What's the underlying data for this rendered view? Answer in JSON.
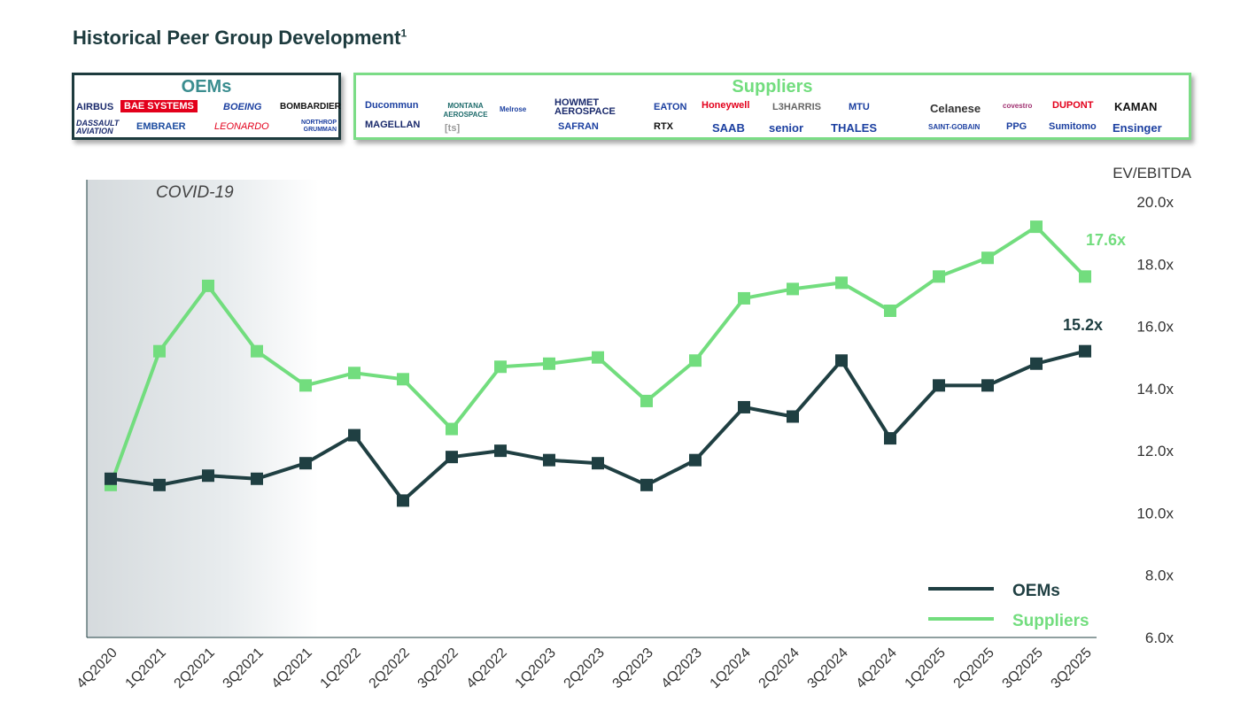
{
  "title": "Historical Peer Group Development",
  "title_footnote": "1",
  "oems_box": {
    "title": "OEMs",
    "logos": [
      "AIRBUS",
      "BAE SYSTEMS",
      "BOEING",
      "BOMBARDIER",
      "DASSAULT AVIATION",
      "EMBRAER",
      "LEONARDO",
      "NORTHROP GRUMMAN"
    ]
  },
  "suppliers_box": {
    "title": "Suppliers",
    "logos": [
      "Ducommun",
      "MAGELLAN",
      "MONTANA AEROSPACE",
      "[ts]",
      "Melrose",
      "HOWMET AEROSPACE",
      "SAFRAN",
      "EATON",
      "RTX",
      "Honeywell",
      "SAAB",
      "L3HARRIS",
      "senior",
      "MTU",
      "THALES",
      "Celanese",
      "SAINT-GOBAIN",
      "covestro",
      "PPG",
      "DUPONT",
      "Sumitomo",
      "KAMAN",
      "Ensinger"
    ]
  },
  "colors": {
    "oems": "#1f3f42",
    "suppliers": "#72dd7e",
    "covid": "#d5dadd"
  },
  "chart_data": {
    "type": "line",
    "ylabel": "EV/EBITDA",
    "ylim": [
      6,
      20
    ],
    "yticks": [
      "6.0x",
      "8.0x",
      "10.0x",
      "12.0x",
      "14.0x",
      "16.0x",
      "18.0x",
      "20.0x"
    ],
    "categories": [
      "4Q2020",
      "1Q2021",
      "2Q2021",
      "3Q2021",
      "4Q2021",
      "1Q2022",
      "2Q2022",
      "3Q2022",
      "4Q2022",
      "1Q2023",
      "2Q2023",
      "3Q2023",
      "4Q2023",
      "1Q2024",
      "2Q2024",
      "3Q2024",
      "4Q2024",
      "1Q2025",
      "2Q2025",
      "3Q2025",
      "3Q2025"
    ],
    "series": [
      {
        "name": "OEMs",
        "values": [
          11.1,
          10.9,
          11.2,
          11.1,
          11.6,
          12.5,
          10.4,
          11.8,
          12.0,
          11.7,
          11.6,
          10.9,
          11.7,
          13.4,
          13.1,
          14.9,
          12.4,
          14.1,
          14.1,
          14.8,
          15.2
        ],
        "end_label": "15.2x"
      },
      {
        "name": "Suppliers",
        "values": [
          10.9,
          15.2,
          17.3,
          15.2,
          14.1,
          14.5,
          14.3,
          12.7,
          14.7,
          14.8,
          15.0,
          13.6,
          14.9,
          16.9,
          17.2,
          17.4,
          16.5,
          17.6,
          18.2,
          19.2,
          17.6
        ],
        "end_label": "17.6x"
      }
    ],
    "annotation": {
      "text": "COVID-19",
      "from": "4Q2020",
      "to": "4Q2021"
    },
    "legend": "bottom-right"
  }
}
